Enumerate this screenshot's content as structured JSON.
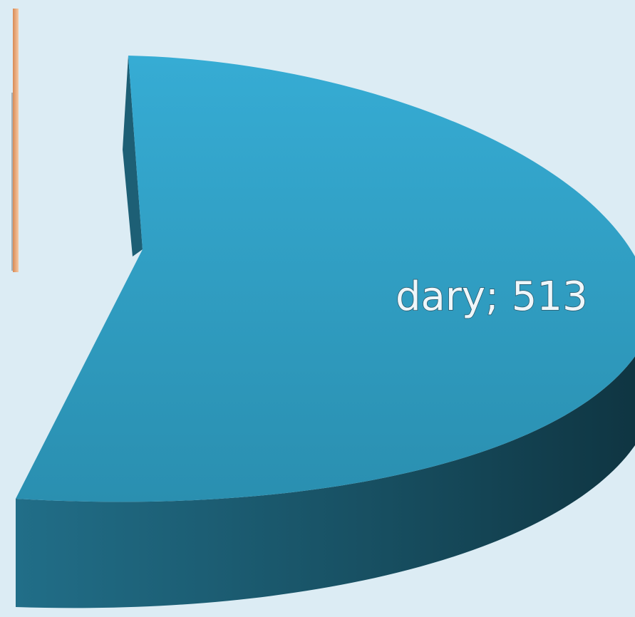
{
  "chart_data": {
    "type": "pie",
    "categories": [
      "dary"
    ],
    "values": [
      513
    ],
    "value_labels": [
      "dary; 513"
    ],
    "colors": [
      "#33a4c9"
    ]
  }
}
